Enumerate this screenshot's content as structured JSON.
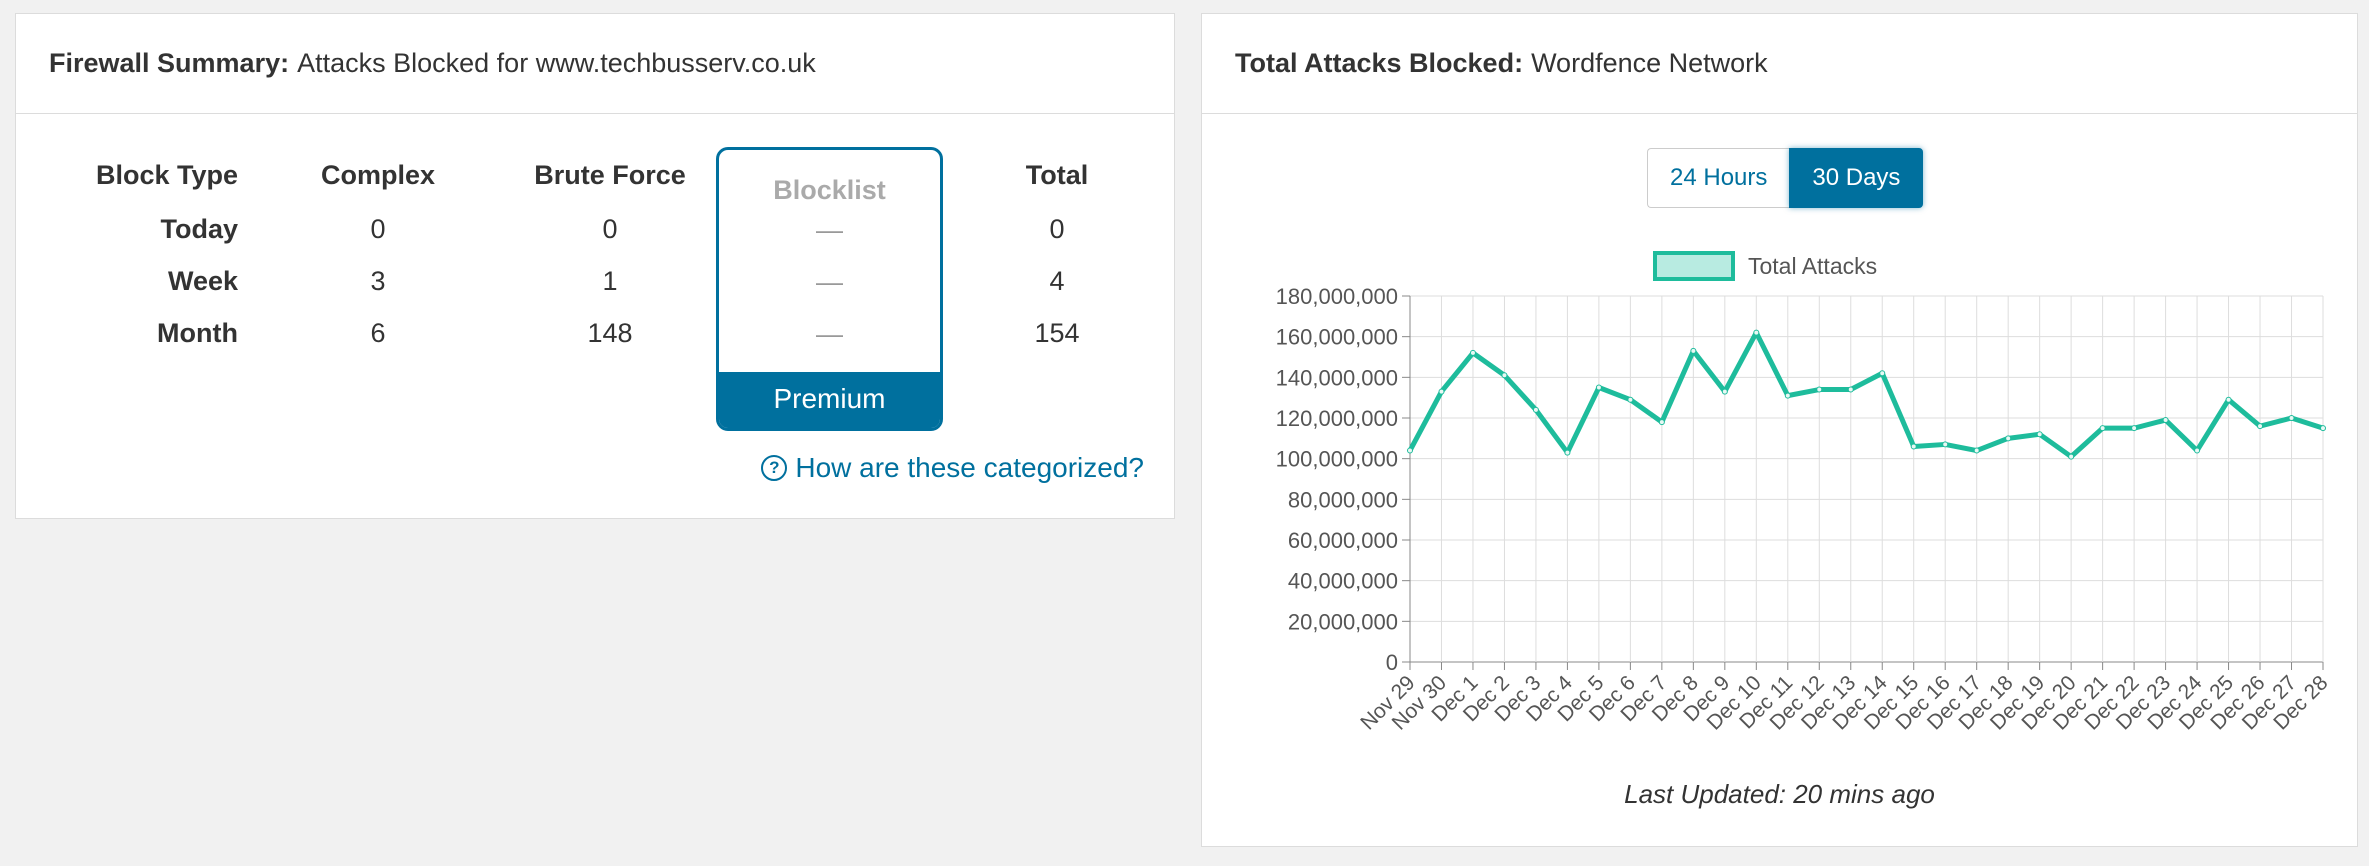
{
  "firewall": {
    "header_bold": "Firewall Summary:",
    "header_rest": "Attacks Blocked for www.techbusserv.co.uk",
    "columns": [
      "Block Type",
      "Complex",
      "Brute Force",
      "Blocklist",
      "Total"
    ],
    "rows": [
      {
        "label": "Today",
        "complex": "0",
        "brute": "0",
        "blocklist": "—",
        "total": "0"
      },
      {
        "label": "Week",
        "complex": "3",
        "brute": "1",
        "blocklist": "—",
        "total": "4"
      },
      {
        "label": "Month",
        "complex": "6",
        "brute": "148",
        "blocklist": "—",
        "total": "154"
      }
    ],
    "premium_label": "Premium",
    "help_link": "How are these categorized?"
  },
  "network": {
    "header_bold": "Total Attacks Blocked:",
    "header_rest": "Wordfence Network",
    "toggle": {
      "hours": "24 Hours",
      "days": "30 Days",
      "active": "days"
    },
    "last_updated": "Last Updated: 20 mins ago"
  },
  "colors": {
    "accent": "#00709e",
    "series": "#1ebc9c"
  },
  "chart_data": {
    "type": "line",
    "legend": [
      "Total Attacks"
    ],
    "x": [
      "Nov 29",
      "Nov 30",
      "Dec 1",
      "Dec 2",
      "Dec 3",
      "Dec 4",
      "Dec 5",
      "Dec 6",
      "Dec 7",
      "Dec 8",
      "Dec 9",
      "Dec 10",
      "Dec 11",
      "Dec 12",
      "Dec 13",
      "Dec 14",
      "Dec 15",
      "Dec 16",
      "Dec 17",
      "Dec 18",
      "Dec 19",
      "Dec 20",
      "Dec 21",
      "Dec 22",
      "Dec 23",
      "Dec 24",
      "Dec 25",
      "Dec 26",
      "Dec 27",
      "Dec 28"
    ],
    "series": [
      {
        "name": "Total Attacks",
        "values": [
          104000000,
          133000000,
          152000000,
          141000000,
          124000000,
          103000000,
          135000000,
          129000000,
          118000000,
          153000000,
          133000000,
          162000000,
          131000000,
          134000000,
          134000000,
          142000000,
          106000000,
          107000000,
          104000000,
          110000000,
          112000000,
          101000000,
          115000000,
          115000000,
          119000000,
          104000000,
          129000000,
          116000000,
          120000000,
          115000000
        ]
      }
    ],
    "yticks": [
      "0",
      "20,000,000",
      "40,000,000",
      "60,000,000",
      "80,000,000",
      "100,000,000",
      "120,000,000",
      "140,000,000",
      "160,000,000",
      "180,000,000"
    ],
    "ylim": [
      0,
      180000000
    ],
    "grid": true,
    "legend_position": "top-center"
  }
}
